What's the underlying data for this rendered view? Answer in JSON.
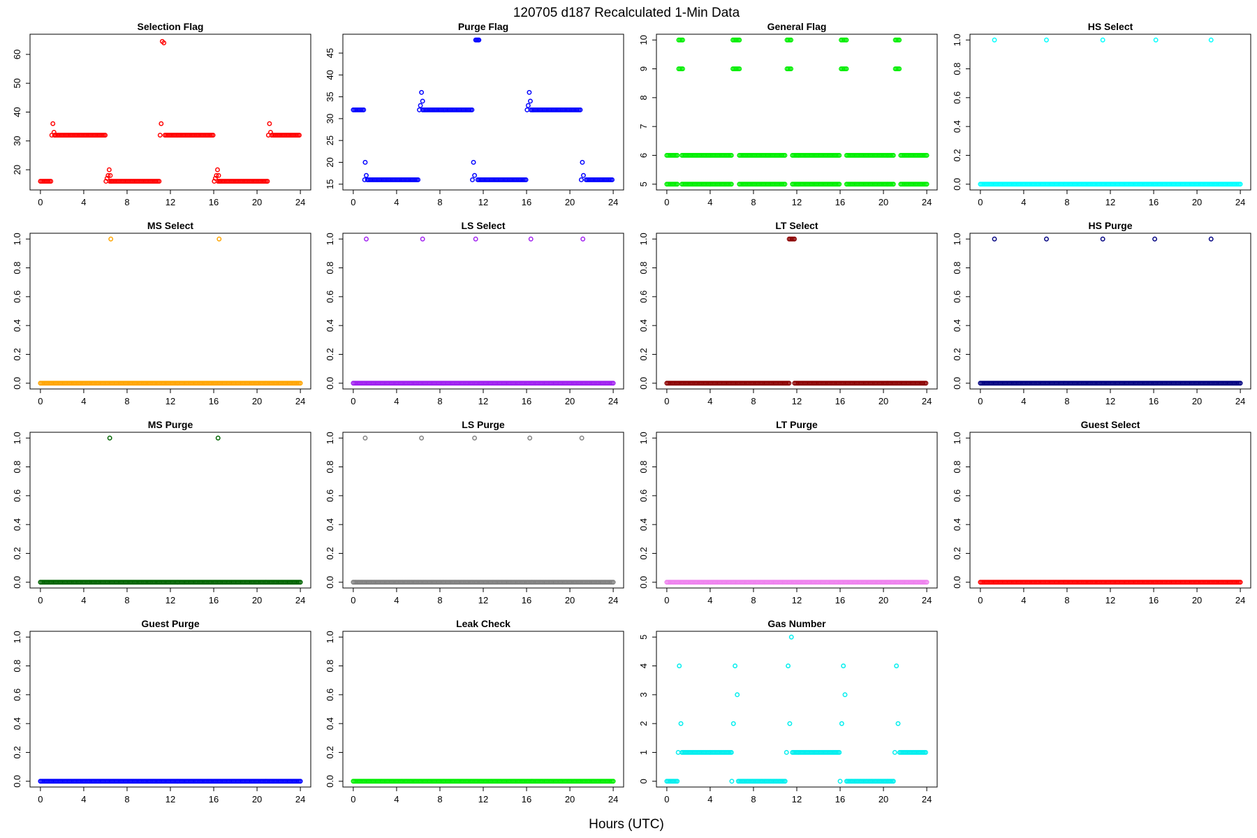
{
  "figure": {
    "title": "120705   d187   Recalculated 1-Min Data",
    "xlabel": "Hours (UTC)"
  },
  "chart_data": [
    {
      "type": "scatter",
      "title": "Selection Flag",
      "color": "#ff0000",
      "xlim": [
        0,
        24
      ],
      "ylim": [
        15,
        65
      ],
      "xticks": [
        0,
        4,
        8,
        12,
        16,
        20,
        24
      ],
      "yticks": [
        20,
        30,
        40,
        50,
        60
      ],
      "runs": [
        [
          0,
          1,
          16
        ],
        [
          1.3,
          6,
          32
        ],
        [
          6.4,
          11,
          16
        ],
        [
          11.5,
          16,
          32
        ],
        [
          16.4,
          21,
          16
        ],
        [
          21.5,
          24,
          32
        ]
      ],
      "points": [
        [
          1.05,
          32
        ],
        [
          1.15,
          36
        ],
        [
          1.25,
          33
        ],
        [
          1.35,
          32
        ],
        [
          6.05,
          16
        ],
        [
          6.15,
          17
        ],
        [
          6.25,
          18
        ],
        [
          6.35,
          20
        ],
        [
          6.45,
          18
        ],
        [
          6.55,
          16
        ],
        [
          11.05,
          32
        ],
        [
          11.15,
          36
        ],
        [
          11.25,
          64.5
        ],
        [
          11.4,
          64
        ],
        [
          16.05,
          16
        ],
        [
          16.15,
          17
        ],
        [
          16.25,
          18
        ],
        [
          16.35,
          20
        ],
        [
          16.45,
          18
        ],
        [
          16.55,
          16
        ],
        [
          21.05,
          32
        ],
        [
          21.15,
          36
        ],
        [
          21.25,
          33
        ],
        [
          21.35,
          32
        ]
      ]
    },
    {
      "type": "scatter",
      "title": "Purge Flag",
      "color": "#0000ff",
      "xlim": [
        0,
        24
      ],
      "ylim": [
        15,
        48
      ],
      "xticks": [
        0,
        4,
        8,
        12,
        16,
        20,
        24
      ],
      "yticks": [
        15,
        20,
        25,
        30,
        35,
        40,
        45
      ],
      "runs": [
        [
          0,
          1,
          32
        ],
        [
          1.3,
          6,
          16
        ],
        [
          6.4,
          11,
          32
        ],
        [
          11.5,
          16,
          16
        ],
        [
          16.4,
          21,
          32
        ],
        [
          21.5,
          24,
          16
        ]
      ],
      "points": [
        [
          1.1,
          20
        ],
        [
          1.2,
          17
        ],
        [
          1.05,
          16
        ],
        [
          6.1,
          32
        ],
        [
          6.2,
          33
        ],
        [
          6.3,
          36
        ],
        [
          6.4,
          34
        ],
        [
          11.0,
          16
        ],
        [
          11.1,
          20
        ],
        [
          11.2,
          17
        ],
        [
          11.3,
          48
        ],
        [
          11.4,
          48
        ],
        [
          11.5,
          48
        ],
        [
          11.6,
          48
        ],
        [
          16.05,
          32
        ],
        [
          16.15,
          33
        ],
        [
          16.25,
          36
        ],
        [
          16.35,
          34
        ],
        [
          21.05,
          16
        ],
        [
          21.15,
          20
        ],
        [
          21.25,
          17
        ]
      ]
    },
    {
      "type": "scatter",
      "title": "General Flag",
      "color": "#00ee00",
      "xlim": [
        0,
        24
      ],
      "ylim": [
        5,
        10
      ],
      "xticks": [
        0,
        4,
        8,
        12,
        16,
        20,
        24
      ],
      "yticks": [
        5,
        6,
        7,
        8,
        9,
        10
      ],
      "runs": [
        [
          0,
          1,
          5
        ],
        [
          0,
          1,
          6
        ],
        [
          1.4,
          6,
          5
        ],
        [
          1.4,
          6,
          6
        ],
        [
          6.7,
          11,
          5
        ],
        [
          6.7,
          11,
          6
        ],
        [
          11.6,
          16,
          5
        ],
        [
          11.6,
          16,
          6
        ],
        [
          16.6,
          21,
          5
        ],
        [
          16.6,
          21,
          6
        ],
        [
          21.6,
          24,
          5
        ],
        [
          21.6,
          24,
          6
        ],
        [
          1.1,
          1.5,
          9
        ],
        [
          1.1,
          1.5,
          10
        ],
        [
          6.1,
          6.7,
          9
        ],
        [
          6.1,
          6.7,
          10
        ],
        [
          11.1,
          11.5,
          9
        ],
        [
          11.1,
          11.5,
          10
        ],
        [
          16.1,
          16.6,
          9
        ],
        [
          16.1,
          16.6,
          10
        ],
        [
          21.1,
          21.5,
          9
        ],
        [
          21.1,
          21.5,
          10
        ]
      ],
      "points": []
    },
    {
      "type": "scatter",
      "title": "HS Select",
      "color": "#00ffff",
      "xlim": [
        0,
        24
      ],
      "ylim": [
        0,
        1
      ],
      "xticks": [
        0,
        4,
        8,
        12,
        16,
        20,
        24
      ],
      "yticks": [
        0.0,
        0.2,
        0.4,
        0.6,
        0.8,
        1.0
      ],
      "runs": [
        [
          0,
          24,
          0
        ]
      ],
      "points": [
        [
          1.3,
          1
        ],
        [
          6.1,
          1
        ],
        [
          11.3,
          1
        ],
        [
          16.2,
          1
        ],
        [
          21.3,
          1
        ]
      ]
    },
    {
      "type": "scatter",
      "title": "MS Select",
      "color": "#ffa500",
      "xlim": [
        0,
        24
      ],
      "ylim": [
        0,
        1
      ],
      "xticks": [
        0,
        4,
        8,
        12,
        16,
        20,
        24
      ],
      "yticks": [
        0.0,
        0.2,
        0.4,
        0.6,
        0.8,
        1.0
      ],
      "runs": [
        [
          0,
          24,
          0
        ]
      ],
      "points": [
        [
          6.5,
          1
        ],
        [
          16.5,
          1
        ]
      ]
    },
    {
      "type": "scatter",
      "title": "LS Select",
      "color": "#a020f0",
      "xlim": [
        0,
        24
      ],
      "ylim": [
        0,
        1
      ],
      "xticks": [
        0,
        4,
        8,
        12,
        16,
        20,
        24
      ],
      "yticks": [
        0.0,
        0.2,
        0.4,
        0.6,
        0.8,
        1.0
      ],
      "runs": [
        [
          0,
          24,
          0
        ]
      ],
      "points": [
        [
          1.2,
          1
        ],
        [
          6.4,
          1
        ],
        [
          11.3,
          1
        ],
        [
          16.4,
          1
        ],
        [
          21.2,
          1
        ]
      ]
    },
    {
      "type": "scatter",
      "title": "LT Select",
      "color": "#8b0000",
      "xlim": [
        0,
        24
      ],
      "ylim": [
        0,
        1
      ],
      "xticks": [
        0,
        4,
        8,
        12,
        16,
        20,
        24
      ],
      "yticks": [
        0.0,
        0.2,
        0.4,
        0.6,
        0.8,
        1.0
      ],
      "runs": [
        [
          0,
          11.3,
          0
        ],
        [
          11.8,
          24,
          0
        ],
        [
          11.3,
          11.8,
          1
        ]
      ],
      "points": []
    },
    {
      "type": "scatter",
      "title": "HS Purge",
      "color": "#000080",
      "xlim": [
        0,
        24
      ],
      "ylim": [
        0,
        1
      ],
      "xticks": [
        0,
        4,
        8,
        12,
        16,
        20,
        24
      ],
      "yticks": [
        0.0,
        0.2,
        0.4,
        0.6,
        0.8,
        1.0
      ],
      "runs": [
        [
          0,
          24,
          0
        ]
      ],
      "points": [
        [
          1.3,
          1
        ],
        [
          6.1,
          1
        ],
        [
          11.3,
          1
        ],
        [
          16.1,
          1
        ],
        [
          21.3,
          1
        ]
      ]
    },
    {
      "type": "scatter",
      "title": "MS Purge",
      "color": "#006400",
      "xlim": [
        0,
        24
      ],
      "ylim": [
        0,
        1
      ],
      "xticks": [
        0,
        4,
        8,
        12,
        16,
        20,
        24
      ],
      "yticks": [
        0.0,
        0.2,
        0.4,
        0.6,
        0.8,
        1.0
      ],
      "runs": [
        [
          0,
          24,
          0
        ]
      ],
      "points": [
        [
          6.4,
          1
        ],
        [
          16.4,
          1
        ]
      ]
    },
    {
      "type": "scatter",
      "title": "LS Purge",
      "color": "#808080",
      "xlim": [
        0,
        24
      ],
      "ylim": [
        0,
        1
      ],
      "xticks": [
        0,
        4,
        8,
        12,
        16,
        20,
        24
      ],
      "yticks": [
        0.0,
        0.2,
        0.4,
        0.6,
        0.8,
        1.0
      ],
      "runs": [
        [
          0,
          24,
          0
        ]
      ],
      "points": [
        [
          1.1,
          1
        ],
        [
          6.3,
          1
        ],
        [
          11.2,
          1
        ],
        [
          16.3,
          1
        ],
        [
          21.1,
          1
        ]
      ]
    },
    {
      "type": "scatter",
      "title": "LT Purge",
      "color": "#ee82ee",
      "xlim": [
        0,
        24
      ],
      "ylim": [
        0,
        1
      ],
      "xticks": [
        0,
        4,
        8,
        12,
        16,
        20,
        24
      ],
      "yticks": [
        0.0,
        0.2,
        0.4,
        0.6,
        0.8,
        1.0
      ],
      "runs": [
        [
          0,
          24,
          0
        ]
      ],
      "points": []
    },
    {
      "type": "scatter",
      "title": "Guest Select",
      "color": "#ff0000",
      "xlim": [
        0,
        24
      ],
      "ylim": [
        0,
        1
      ],
      "xticks": [
        0,
        4,
        8,
        12,
        16,
        20,
        24
      ],
      "yticks": [
        0.0,
        0.2,
        0.4,
        0.6,
        0.8,
        1.0
      ],
      "runs": [
        [
          0,
          24,
          0
        ]
      ],
      "points": []
    },
    {
      "type": "scatter",
      "title": "Guest Purge",
      "color": "#0000ff",
      "xlim": [
        0,
        24
      ],
      "ylim": [
        0,
        1
      ],
      "xticks": [
        0,
        4,
        8,
        12,
        16,
        20,
        24
      ],
      "yticks": [
        0.0,
        0.2,
        0.4,
        0.6,
        0.8,
        1.0
      ],
      "runs": [
        [
          0,
          24,
          0
        ]
      ],
      "points": []
    },
    {
      "type": "scatter",
      "title": "Leak Check",
      "color": "#00ee00",
      "xlim": [
        0,
        24
      ],
      "ylim": [
        0,
        1
      ],
      "xticks": [
        0,
        4,
        8,
        12,
        16,
        20,
        24
      ],
      "yticks": [
        0.0,
        0.2,
        0.4,
        0.6,
        0.8,
        1.0
      ],
      "runs": [
        [
          0,
          24,
          0
        ]
      ],
      "points": []
    },
    {
      "type": "scatter",
      "title": "Gas Number",
      "color": "#00eeee",
      "xlim": [
        0,
        24
      ],
      "ylim": [
        0,
        5
      ],
      "xticks": [
        0,
        4,
        8,
        12,
        16,
        20,
        24
      ],
      "yticks": [
        0,
        1,
        2,
        3,
        4,
        5
      ],
      "runs": [
        [
          0,
          1,
          0
        ],
        [
          1.4,
          6,
          1
        ],
        [
          6.6,
          11,
          0
        ],
        [
          11.6,
          16,
          1
        ],
        [
          16.6,
          21,
          0
        ],
        [
          21.5,
          24,
          1
        ]
      ],
      "points": [
        [
          1.05,
          1
        ],
        [
          1.15,
          4
        ],
        [
          1.3,
          2
        ],
        [
          6.0,
          0
        ],
        [
          6.15,
          2
        ],
        [
          6.3,
          4
        ],
        [
          6.5,
          3
        ],
        [
          11.05,
          1
        ],
        [
          11.2,
          4
        ],
        [
          11.35,
          2
        ],
        [
          11.5,
          5
        ],
        [
          16.0,
          0
        ],
        [
          16.15,
          2
        ],
        [
          16.3,
          4
        ],
        [
          16.45,
          3
        ],
        [
          21.05,
          1
        ],
        [
          21.2,
          4
        ],
        [
          21.35,
          2
        ]
      ]
    }
  ]
}
